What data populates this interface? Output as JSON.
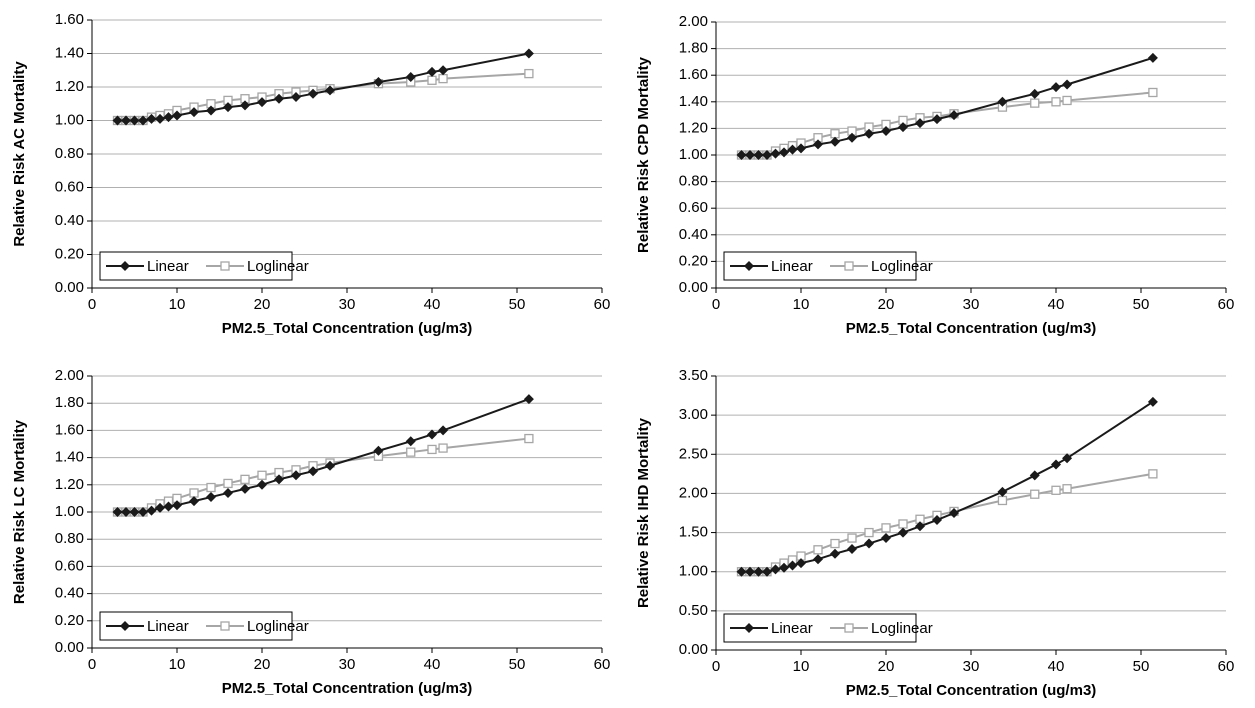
{
  "chart_data": [
    {
      "type": "line",
      "ylabel": "Relative Risk AC Mortality",
      "xlabel": "PM2.5_Total Concentration (ug/m3)",
      "x": [
        3,
        4,
        5,
        6,
        7,
        8,
        9,
        10,
        12,
        14,
        16,
        18,
        20,
        22,
        24,
        26,
        28,
        33.7,
        37.5,
        40,
        41.3,
        51.4
      ],
      "series": [
        {
          "name": "Linear",
          "color": "#1a1a1a",
          "marker": "diamond",
          "values": [
            1.0,
            1.0,
            1.0,
            1.0,
            1.01,
            1.01,
            1.02,
            1.03,
            1.05,
            1.06,
            1.08,
            1.09,
            1.11,
            1.13,
            1.14,
            1.16,
            1.18,
            1.23,
            1.26,
            1.29,
            1.3,
            1.4
          ]
        },
        {
          "name": "Loglinear",
          "color": "#a6a6a6",
          "marker": "square-open",
          "values": [
            1.0,
            1.0,
            1.0,
            1.0,
            1.02,
            1.03,
            1.04,
            1.06,
            1.08,
            1.1,
            1.12,
            1.13,
            1.14,
            1.16,
            1.17,
            1.18,
            1.19,
            1.22,
            1.23,
            1.24,
            1.25,
            1.28
          ]
        }
      ],
      "xlim": [
        0,
        60
      ],
      "xticks": [
        0,
        10,
        20,
        30,
        40,
        50,
        60
      ],
      "ylim": [
        0,
        1.6
      ],
      "yticks": [
        {
          "value": 0,
          "label": "0.00"
        },
        {
          "value": 0.2,
          "label": "0.20"
        },
        {
          "value": 0.4,
          "label": "0.40"
        },
        {
          "value": 0.6,
          "label": "0.60"
        },
        {
          "value": 0.8,
          "label": "0.80"
        },
        {
          "value": 1.0,
          "label": "1.00"
        },
        {
          "value": 1.2,
          "label": "1.20"
        },
        {
          "value": 1.4,
          "label": "1.40"
        },
        {
          "value": 1.6,
          "label": "1.60"
        }
      ],
      "grid": true,
      "legend": "lower left"
    },
    {
      "type": "line",
      "ylabel": "Relative Risk CPD Mortality",
      "xlabel": "PM2.5_Total Concentration (ug/m3)",
      "x": [
        3,
        4,
        5,
        6,
        7,
        8,
        9,
        10,
        12,
        14,
        16,
        18,
        20,
        22,
        24,
        26,
        28,
        33.7,
        37.5,
        40,
        41.3,
        51.4
      ],
      "series": [
        {
          "name": "Linear",
          "color": "#1a1a1a",
          "marker": "diamond",
          "values": [
            1.0,
            1.0,
            1.0,
            1.0,
            1.01,
            1.02,
            1.04,
            1.05,
            1.08,
            1.1,
            1.13,
            1.16,
            1.18,
            1.21,
            1.24,
            1.27,
            1.3,
            1.4,
            1.46,
            1.51,
            1.53,
            1.73
          ]
        },
        {
          "name": "Loglinear",
          "color": "#a6a6a6",
          "marker": "square-open",
          "values": [
            1.0,
            1.0,
            1.0,
            1.0,
            1.03,
            1.05,
            1.07,
            1.09,
            1.13,
            1.16,
            1.18,
            1.21,
            1.23,
            1.26,
            1.28,
            1.29,
            1.31,
            1.36,
            1.39,
            1.4,
            1.41,
            1.47
          ]
        }
      ],
      "xlim": [
        0,
        60
      ],
      "xticks": [
        0,
        10,
        20,
        30,
        40,
        50,
        60
      ],
      "ylim": [
        0,
        2
      ],
      "yticks": [
        {
          "value": 0,
          "label": "0.00"
        },
        {
          "value": 0.2,
          "label": "0.20"
        },
        {
          "value": 0.4,
          "label": "0.40"
        },
        {
          "value": 0.6,
          "label": "0.60"
        },
        {
          "value": 0.8,
          "label": "0.80"
        },
        {
          "value": 1.0,
          "label": "1.00"
        },
        {
          "value": 1.2,
          "label": "1.20"
        },
        {
          "value": 1.4,
          "label": "1.40"
        },
        {
          "value": 1.6,
          "label": "1.60"
        },
        {
          "value": 1.8,
          "label": "1.80"
        },
        {
          "value": 2.0,
          "label": "2.00"
        }
      ],
      "grid": true,
      "legend": "lower left"
    },
    {
      "type": "line",
      "ylabel": "Relative Risk LC Mortality",
      "xlabel": "PM2.5_Total Concentration (ug/m3)",
      "x": [
        3,
        4,
        5,
        6,
        7,
        8,
        9,
        10,
        12,
        14,
        16,
        18,
        20,
        22,
        24,
        26,
        28,
        33.7,
        37.5,
        40,
        41.3,
        51.4
      ],
      "series": [
        {
          "name": "Linear",
          "color": "#1a1a1a",
          "marker": "diamond",
          "values": [
            1.0,
            1.0,
            1.0,
            1.0,
            1.01,
            1.03,
            1.04,
            1.05,
            1.08,
            1.11,
            1.14,
            1.17,
            1.2,
            1.24,
            1.27,
            1.3,
            1.34,
            1.45,
            1.52,
            1.57,
            1.6,
            1.83
          ]
        },
        {
          "name": "Loglinear",
          "color": "#a6a6a6",
          "marker": "square-open",
          "values": [
            1.0,
            1.0,
            1.0,
            1.0,
            1.03,
            1.06,
            1.08,
            1.1,
            1.14,
            1.18,
            1.21,
            1.24,
            1.27,
            1.29,
            1.31,
            1.34,
            1.36,
            1.41,
            1.44,
            1.46,
            1.47,
            1.54
          ]
        }
      ],
      "xlim": [
        0,
        60
      ],
      "xticks": [
        0,
        10,
        20,
        30,
        40,
        50,
        60
      ],
      "ylim": [
        0,
        2
      ],
      "yticks": [
        {
          "value": 0,
          "label": "0.00"
        },
        {
          "value": 0.2,
          "label": "0.20"
        },
        {
          "value": 0.4,
          "label": "0.40"
        },
        {
          "value": 0.6,
          "label": "0.60"
        },
        {
          "value": 0.8,
          "label": "0.80"
        },
        {
          "value": 1.0,
          "label": "1.00"
        },
        {
          "value": 1.2,
          "label": "1.20"
        },
        {
          "value": 1.4,
          "label": "1.40"
        },
        {
          "value": 1.6,
          "label": "1.60"
        },
        {
          "value": 1.8,
          "label": "1.80"
        },
        {
          "value": 2.0,
          "label": "2.00"
        }
      ],
      "grid": true,
      "legend": "lower left"
    },
    {
      "type": "line",
      "ylabel": "Relative Risk IHD Mortality",
      "xlabel": "PM2.5_Total Concentration (ug/m3)",
      "x": [
        3,
        4,
        5,
        6,
        7,
        8,
        9,
        10,
        12,
        14,
        16,
        18,
        20,
        22,
        24,
        26,
        28,
        33.7,
        37.5,
        40,
        41.3,
        51.4
      ],
      "series": [
        {
          "name": "Linear",
          "color": "#1a1a1a",
          "marker": "diamond",
          "values": [
            1.0,
            1.0,
            1.0,
            1.0,
            1.03,
            1.05,
            1.08,
            1.11,
            1.16,
            1.23,
            1.29,
            1.36,
            1.43,
            1.5,
            1.58,
            1.66,
            1.75,
            2.02,
            2.23,
            2.37,
            2.45,
            3.17
          ]
        },
        {
          "name": "Loglinear",
          "color": "#a6a6a6",
          "marker": "square-open",
          "values": [
            1.0,
            1.0,
            1.0,
            1.0,
            1.06,
            1.11,
            1.15,
            1.2,
            1.28,
            1.36,
            1.43,
            1.5,
            1.56,
            1.61,
            1.67,
            1.72,
            1.77,
            1.91,
            1.99,
            2.04,
            2.06,
            2.25
          ]
        }
      ],
      "xlim": [
        0,
        60
      ],
      "xticks": [
        0,
        10,
        20,
        30,
        40,
        50,
        60
      ],
      "ylim": [
        0,
        3.5
      ],
      "yticks": [
        {
          "value": 0,
          "label": "0.00"
        },
        {
          "value": 0.5,
          "label": "0.50"
        },
        {
          "value": 1.0,
          "label": "1.00"
        },
        {
          "value": 1.5,
          "label": "1.50"
        },
        {
          "value": 2.0,
          "label": "2.00"
        },
        {
          "value": 2.5,
          "label": "2.50"
        },
        {
          "value": 3.0,
          "label": "3.00"
        },
        {
          "value": 3.5,
          "label": "3.50"
        }
      ],
      "grid": true,
      "legend": "lower left"
    }
  ]
}
